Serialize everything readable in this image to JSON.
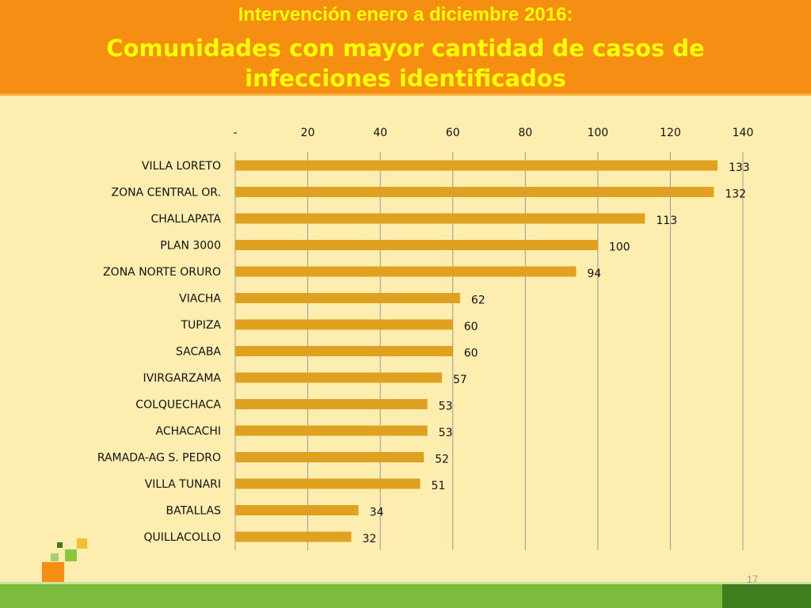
{
  "header": {
    "subtitle": "Intervención enero a diciembre 2016:",
    "title_line1": "Comunidades con mayor cantidad de casos de",
    "title_line2": "infecciones identificados"
  },
  "colors": {
    "header_bg": "#f58e12",
    "title_text": "#ffff00",
    "page_bg": "#fdeeb0",
    "bar": "#e0a020",
    "footer_green": "#7dbb3c"
  },
  "chart_data": {
    "type": "bar",
    "orientation": "horizontal",
    "categories": [
      "VILLA LORETO",
      "ZONA CENTRAL OR.",
      "CHALLAPATA",
      "PLAN 3000",
      "ZONA NORTE ORURO",
      "VIACHA",
      "TUPIZA",
      "SACABA",
      "IVIRGARZAMA",
      "COLQUECHACA",
      "ACHACACHI",
      "RAMADA-AG S. PEDRO",
      "VILLA TUNARI",
      "BATALLAS",
      "QUILLACOLLO"
    ],
    "values": [
      133,
      132,
      113,
      100,
      94,
      62,
      60,
      60,
      57,
      53,
      53,
      52,
      51,
      34,
      32
    ],
    "xlim": [
      0,
      140
    ],
    "xticks": [
      0,
      20,
      40,
      60,
      80,
      100,
      120,
      140
    ],
    "xtick_labels": [
      "-",
      "20",
      "40",
      "60",
      "80",
      "100",
      "120",
      "140"
    ],
    "axis_position": "top",
    "grid": true,
    "data_labels": true
  },
  "page_number": "17"
}
